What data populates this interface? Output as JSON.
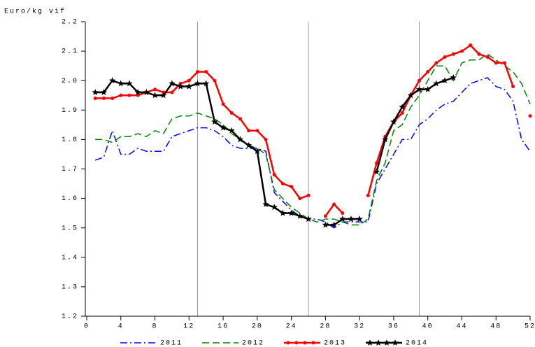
{
  "chart_data": {
    "type": "line",
    "y_label": "Euro/kg vif",
    "xlim": [
      0,
      52
    ],
    "xticks": [
      0,
      4,
      8,
      12,
      16,
      20,
      24,
      28,
      32,
      36,
      40,
      44,
      48,
      52
    ],
    "xgrid": [
      13,
      26,
      39
    ],
    "ylim": [
      1.2,
      2.2
    ],
    "yticks": [
      1.2,
      1.3,
      1.4,
      1.5,
      1.6,
      1.7,
      1.8,
      1.9,
      {
        "value": 2,
        "label": "2.0"
      },
      2.1,
      2.2
    ],
    "x": [
      1,
      2,
      3,
      4,
      5,
      6,
      7,
      8,
      9,
      10,
      11,
      12,
      13,
      14,
      15,
      16,
      17,
      18,
      19,
      20,
      21,
      22,
      23,
      24,
      25,
      26,
      27,
      28,
      29,
      30,
      31,
      32,
      33,
      34,
      35,
      36,
      37,
      38,
      39,
      40,
      41,
      42,
      43,
      44,
      45,
      46,
      47,
      48,
      49,
      50,
      51,
      52
    ],
    "series": [
      {
        "name": "2011",
        "color": "#0000ff",
        "style": "dash-dot",
        "marker": "none",
        "values": [
          1.73,
          1.74,
          1.83,
          1.75,
          1.75,
          1.77,
          1.76,
          1.76,
          1.76,
          1.81,
          1.82,
          1.83,
          1.84,
          1.84,
          1.83,
          1.81,
          1.78,
          1.77,
          1.77,
          1.77,
          1.76,
          1.62,
          1.59,
          1.56,
          1.54,
          1.53,
          1.53,
          1.52,
          1.5,
          1.52,
          1.52,
          1.52,
          1.52,
          1.65,
          1.7,
          1.75,
          1.8,
          1.8,
          1.85,
          1.87,
          1.9,
          1.92,
          1.93,
          1.96,
          1.99,
          2.0,
          2.01,
          1.98,
          1.97,
          1.93,
          1.8,
          1.76
        ]
      },
      {
        "name": "2012",
        "color": "#008000",
        "style": "dashed",
        "marker": "none",
        "values": [
          1.8,
          1.8,
          1.79,
          1.81,
          1.81,
          1.82,
          1.81,
          1.83,
          1.82,
          1.87,
          1.88,
          1.88,
          1.89,
          1.88,
          1.87,
          1.85,
          1.82,
          1.8,
          1.78,
          1.77,
          1.75,
          1.63,
          1.6,
          1.57,
          1.55,
          1.53,
          1.52,
          1.53,
          1.53,
          1.52,
          1.51,
          1.51,
          1.53,
          1.66,
          1.72,
          1.83,
          1.85,
          1.91,
          1.95,
          2.0,
          2.05,
          2.05,
          2.0,
          2.06,
          2.07,
          2.07,
          2.09,
          2.07,
          2.05,
          2.03,
          1.99,
          1.92
        ]
      },
      {
        "name": "2013",
        "color": "#ff0000",
        "style": "solid",
        "marker": "dot",
        "values": [
          1.94,
          1.94,
          1.94,
          1.95,
          1.95,
          1.95,
          1.96,
          1.97,
          1.96,
          1.96,
          1.99,
          2.0,
          2.03,
          2.03,
          2.0,
          1.92,
          1.89,
          1.87,
          1.83,
          1.83,
          1.8,
          1.68,
          1.65,
          1.64,
          1.6,
          1.61,
          null,
          1.54,
          1.58,
          1.55,
          null,
          null,
          1.61,
          1.72,
          1.81,
          1.86,
          1.89,
          1.95,
          2.0,
          2.03,
          2.06,
          2.08,
          2.09,
          2.1,
          2.12,
          2.09,
          2.08,
          2.06,
          2.06,
          1.98,
          null,
          1.88
        ]
      },
      {
        "name": "2014",
        "color": "#000000",
        "style": "solid",
        "marker": "star",
        "values": [
          1.96,
          1.96,
          2.0,
          1.99,
          1.99,
          1.96,
          1.96,
          1.95,
          1.95,
          1.99,
          1.98,
          1.98,
          1.99,
          1.99,
          1.86,
          1.84,
          1.83,
          1.8,
          1.78,
          1.76,
          1.58,
          1.57,
          1.55,
          1.55,
          1.54,
          1.53,
          null,
          1.51,
          1.51,
          1.53,
          1.53,
          1.53,
          null,
          1.69,
          1.8,
          1.86,
          1.91,
          1.95,
          1.97,
          1.97,
          1.99,
          2.0,
          2.01,
          null,
          null,
          null,
          null,
          null,
          null,
          null,
          null,
          null
        ]
      }
    ]
  }
}
